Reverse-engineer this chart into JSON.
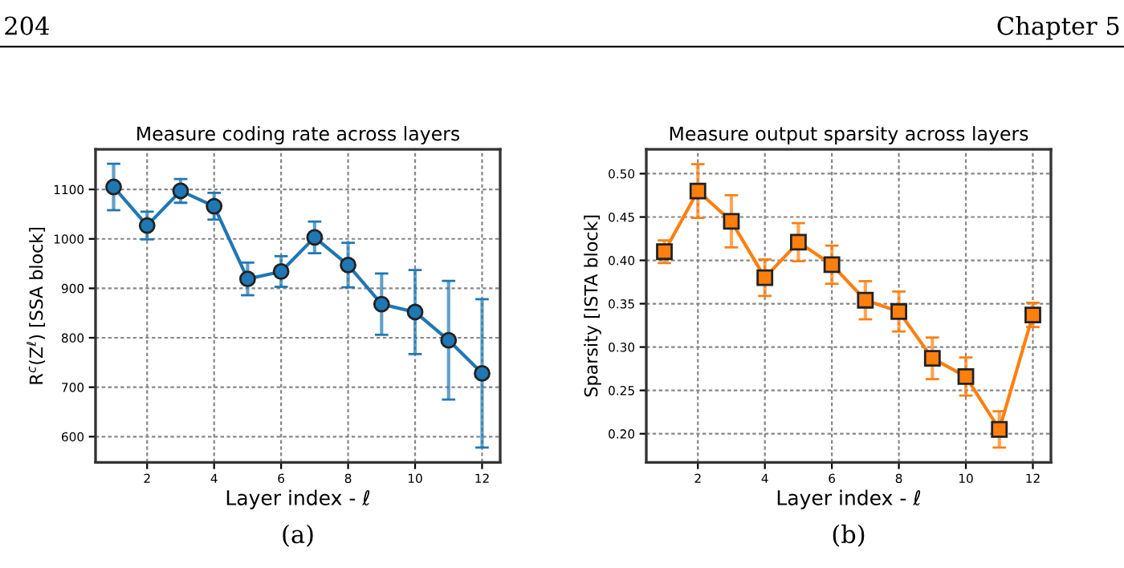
{
  "chart_data": [
    {
      "type": "line",
      "title": "Measure coding rate across layers",
      "xlabel": "Layer index - ℓ",
      "ylabel": "R$^{c}$(Z$^{ℓ}$) [SSA block]",
      "x": [
        1,
        2,
        3,
        4,
        5,
        6,
        7,
        8,
        9,
        10,
        11,
        12
      ],
      "series": [
        {
          "color": "#1f77b4",
          "values": [
            1105,
            1027,
            1097,
            1066,
            919,
            934,
            1003,
            947,
            868,
            852,
            795,
            728
          ],
          "errors": [
            47,
            28,
            24,
            27,
            33,
            31,
            32,
            45,
            62,
            85,
            120,
            150
          ]
        }
      ],
      "xlim": [
        0.46,
        12.54
      ],
      "ylim": [
        548,
        1181
      ],
      "xticks": [
        2,
        4,
        6,
        8,
        10,
        12
      ],
      "yticks": [
        600,
        700,
        800,
        900,
        1000,
        1100
      ],
      "grid": true,
      "marker": "circle",
      "line_style": "solid",
      "annotations": [
        "(a)",
        "204"
      ]
    },
    {
      "type": "line",
      "title": "Measure output sparsity across layers",
      "xlabel": "Layer index - ℓ",
      "ylabel": "Sparsity [ISTA block]",
      "x": [
        1,
        2,
        3,
        4,
        5,
        6,
        7,
        8,
        9,
        10,
        11,
        12
      ],
      "series": [
        {
          "color": "#ff7f0e",
          "values": [
            0.41,
            0.48,
            0.445,
            0.38,
            0.421,
            0.395,
            0.354,
            0.341,
            0.287,
            0.266,
            0.205,
            0.337
          ],
          "errors": [
            0.013,
            0.031,
            0.03,
            0.021,
            0.022,
            0.022,
            0.022,
            0.023,
            0.024,
            0.022,
            0.021,
            0.014
          ]
        }
      ],
      "xlim": [
        0.46,
        12.54
      ],
      "ylim": [
        0.167,
        0.528
      ],
      "xticks": [
        2,
        4,
        6,
        8,
        10,
        12
      ],
      "yticks": [
        {
          "value": 0.2,
          "label": "0.20"
        },
        {
          "value": 0.25,
          "label": "0.25"
        },
        {
          "value": 0.3,
          "label": "0.30"
        },
        {
          "value": 0.35,
          "label": "0.35"
        },
        {
          "value": 0.4,
          "label": "0.40"
        },
        {
          "value": 0.45,
          "label": "0.45"
        },
        {
          "value": 0.5,
          "label": "0.50"
        }
      ],
      "grid": true,
      "marker": "square",
      "line_style": "solid",
      "annotations": [
        "(b)",
        "Chapter 5"
      ]
    }
  ]
}
